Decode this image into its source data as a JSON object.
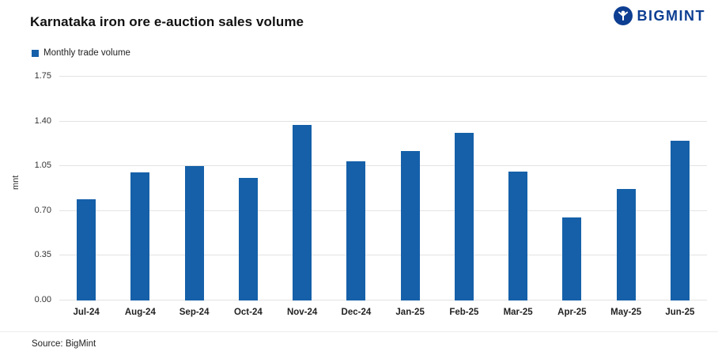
{
  "header": {
    "title": "Karnataka iron ore e-auction sales volume",
    "brand": "BIGMINT"
  },
  "legend": {
    "label": "Monthly trade volume"
  },
  "source": "Source: BigMint",
  "colors": {
    "bar": "#1560a9",
    "brand": "#0d3e92",
    "gridline": "#e3e3e3"
  },
  "chart_data": {
    "type": "bar",
    "title": "Karnataka iron ore e-auction sales volume",
    "categories": [
      "Jul-24",
      "Aug-24",
      "Sep-24",
      "Oct-24",
      "Nov-24",
      "Dec-24",
      "Jan-25",
      "Feb-25",
      "Mar-25",
      "Apr-25",
      "May-25",
      "Jun-25"
    ],
    "values": [
      0.79,
      1.0,
      1.05,
      0.96,
      1.37,
      1.09,
      1.17,
      1.31,
      1.01,
      0.65,
      0.87,
      1.25
    ],
    "series_name": "Monthly trade volume",
    "xlabel": "",
    "ylabel": "mnt",
    "ylim": [
      0,
      1.75
    ],
    "yticks": [
      0.0,
      0.35,
      0.7,
      1.05,
      1.4,
      1.75
    ],
    "grid": true,
    "legend_position": "top-left"
  }
}
